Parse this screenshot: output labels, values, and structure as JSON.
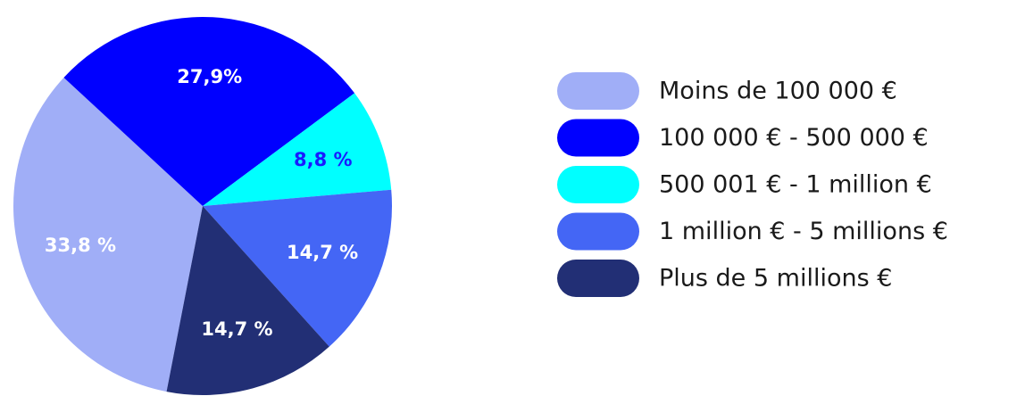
{
  "chart_data": {
    "type": "pie",
    "legend_position": "right",
    "slices": [
      {
        "legend": "Moins de 100 000 €",
        "value": 33.8,
        "label": "33,8 %",
        "color": "#a0aef7",
        "label_color": "#ffffff"
      },
      {
        "legend": "100 000 € - 500 000 €",
        "value": 27.9,
        "label": "27,9%",
        "color": "#0000ff",
        "label_color": "#ffffff"
      },
      {
        "legend": "500 001 € - 1 million €",
        "value": 8.8,
        "label": "8,8 %",
        "color": "#00ffff",
        "label_color": "#1a1aff"
      },
      {
        "legend": "1 million € - 5 millions €",
        "value": 14.7,
        "label": "14,7 %",
        "color": "#4466f5",
        "label_color": "#ffffff"
      },
      {
        "legend": "Plus de 5 millions €",
        "value": 14.7,
        "label": "14,7 %",
        "color": "#222f75",
        "label_color": "#ffffff"
      }
    ]
  }
}
